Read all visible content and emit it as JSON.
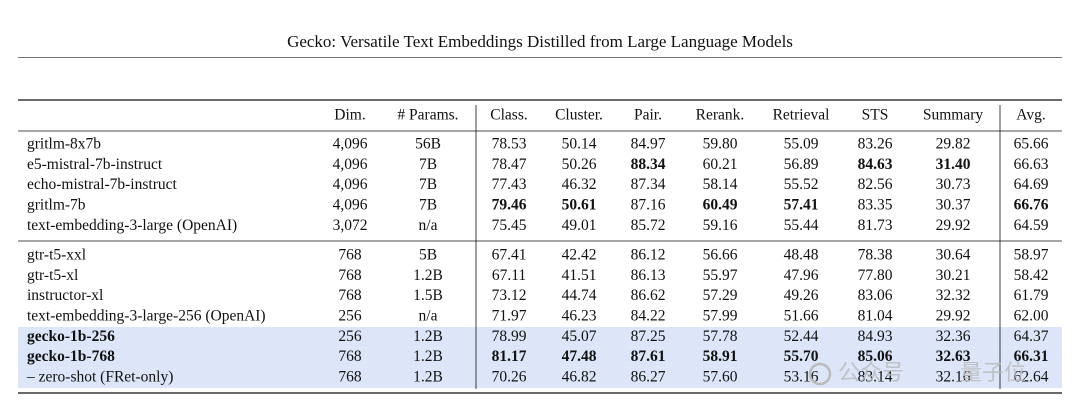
{
  "header": {
    "title": "Gecko: Versatile Text Embeddings Distilled from Large Language Models"
  },
  "table": {
    "columns": [
      "Dim.",
      "# Params.",
      "Class.",
      "Cluster.",
      "Pair.",
      "Rerank.",
      "Retrieval",
      "STS",
      "Summary",
      "Avg."
    ],
    "groups": [
      {
        "rows": [
          {
            "cells": [
              "gritlm-8x7b",
              "4,096",
              "56B",
              "78.53",
              "50.14",
              "84.97",
              "59.80",
              "55.09",
              "83.26",
              "29.82",
              "65.66"
            ],
            "bold": []
          },
          {
            "cells": [
              "e5-mistral-7b-instruct",
              "4,096",
              "7B",
              "78.47",
              "50.26",
              "88.34",
              "60.21",
              "56.89",
              "84.63",
              "31.40",
              "66.63"
            ],
            "bold": [
              5,
              8,
              9
            ]
          },
          {
            "cells": [
              "echo-mistral-7b-instruct",
              "4,096",
              "7B",
              "77.43",
              "46.32",
              "87.34",
              "58.14",
              "55.52",
              "82.56",
              "30.73",
              "64.69"
            ],
            "bold": []
          },
          {
            "cells": [
              "gritlm-7b",
              "4,096",
              "7B",
              "79.46",
              "50.61",
              "87.16",
              "60.49",
              "57.41",
              "83.35",
              "30.37",
              "66.76"
            ],
            "bold": [
              3,
              4,
              6,
              7,
              10
            ]
          },
          {
            "cells": [
              "text-embedding-3-large (OpenAI)",
              "3,072",
              "n/a",
              "75.45",
              "49.01",
              "85.72",
              "59.16",
              "55.44",
              "81.73",
              "29.92",
              "64.59"
            ],
            "bold": []
          }
        ]
      },
      {
        "rows": [
          {
            "cells": [
              "gtr-t5-xxl",
              "768",
              "5B",
              "67.41",
              "42.42",
              "86.12",
              "56.66",
              "48.48",
              "78.38",
              "30.64",
              "58.97"
            ],
            "bold": []
          },
          {
            "cells": [
              "gtr-t5-xl",
              "768",
              "1.2B",
              "67.11",
              "41.51",
              "86.13",
              "55.97",
              "47.96",
              "77.80",
              "30.21",
              "58.42"
            ],
            "bold": []
          },
          {
            "cells": [
              "instructor-xl",
              "768",
              "1.5B",
              "73.12",
              "44.74",
              "86.62",
              "57.29",
              "49.26",
              "83.06",
              "32.32",
              "61.79"
            ],
            "bold": []
          },
          {
            "cells": [
              "text-embedding-3-large-256 (OpenAI)",
              "256",
              "n/a",
              "71.97",
              "46.23",
              "84.22",
              "57.99",
              "51.66",
              "81.04",
              "29.92",
              "62.00"
            ],
            "bold": []
          },
          {
            "cells": [
              "gecko-1b-256",
              "256",
              "1.2B",
              "78.99",
              "45.07",
              "87.25",
              "57.78",
              "52.44",
              "84.93",
              "32.36",
              "64.37"
            ],
            "bold": [
              0
            ],
            "highlight": true
          },
          {
            "cells": [
              "gecko-1b-768",
              "768",
              "1.2B",
              "81.17",
              "47.48",
              "87.61",
              "58.91",
              "55.70",
              "85.06",
              "32.63",
              "66.31"
            ],
            "bold": [
              0,
              3,
              4,
              5,
              6,
              7,
              8,
              9,
              10
            ],
            "highlight": true
          },
          {
            "cells": [
              "– zero-shot (FRet-only)",
              "768",
              "1.2B",
              "70.26",
              "46.82",
              "86.27",
              "57.60",
              "53.16",
              "83.14",
              "32.16",
              "62.64"
            ],
            "bold": [],
            "highlight": true
          }
        ]
      }
    ]
  },
  "watermark": [
    "公众号",
    "量子位"
  ]
}
